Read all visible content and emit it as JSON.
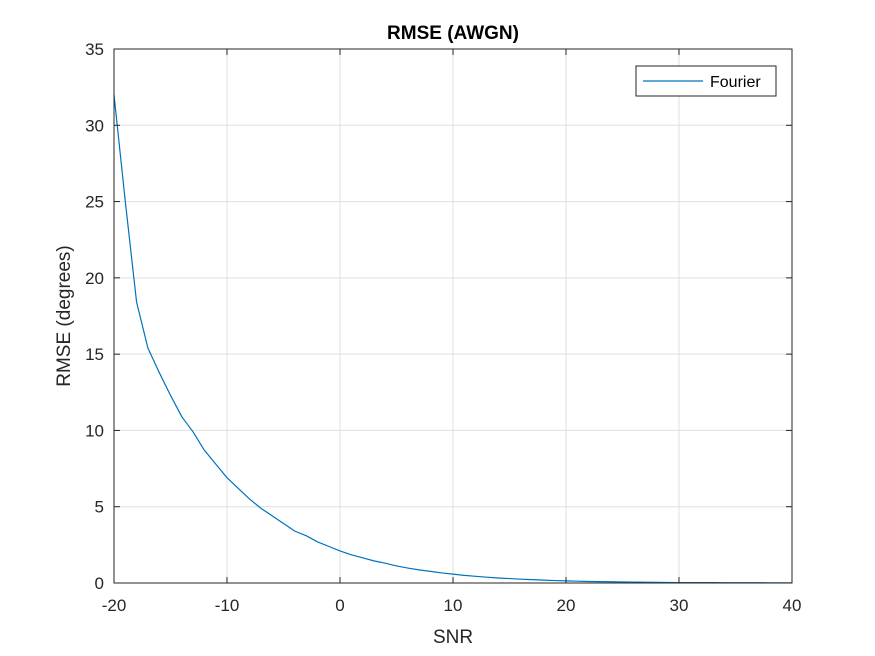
{
  "chart_data": {
    "type": "line",
    "title": "RMSE (AWGN)",
    "xlabel": "SNR",
    "ylabel": "RMSE (degrees)",
    "xlim": [
      -20,
      40
    ],
    "ylim": [
      0,
      35
    ],
    "xticks": [
      "-20",
      "-10",
      "0",
      "10",
      "20",
      "30",
      "40"
    ],
    "yticks": [
      "0",
      "5",
      "10",
      "15",
      "20",
      "25",
      "30",
      "35"
    ],
    "grid": true,
    "legend_position": "top-right",
    "series": [
      {
        "name": "Fourier",
        "color": "#0072BD",
        "x": [
          -20,
          -19,
          -18,
          -17,
          -16,
          -15,
          -14,
          -13,
          -12,
          -11,
          -10,
          -9,
          -8,
          -7,
          -6,
          -5,
          -4,
          -3,
          -2,
          -1,
          0,
          1,
          2,
          3,
          4,
          5,
          6,
          7,
          8,
          9,
          10,
          11,
          12,
          13,
          14,
          15,
          16,
          17,
          18,
          19,
          20,
          21,
          22,
          23,
          24,
          25,
          26,
          27,
          28,
          29,
          30,
          31,
          32,
          33,
          34,
          35,
          36,
          37,
          38,
          39,
          40
        ],
        "y": [
          32.0,
          25.0,
          18.4,
          15.4,
          13.8,
          12.3,
          10.9,
          9.9,
          8.7,
          7.8,
          6.9,
          6.2,
          5.5,
          4.9,
          4.4,
          3.9,
          3.4,
          3.1,
          2.7,
          2.4,
          2.1,
          1.85,
          1.65,
          1.45,
          1.3,
          1.12,
          0.98,
          0.86,
          0.76,
          0.66,
          0.58,
          0.5,
          0.44,
          0.38,
          0.33,
          0.29,
          0.25,
          0.22,
          0.19,
          0.16,
          0.14,
          0.12,
          0.1,
          0.09,
          0.08,
          0.07,
          0.06,
          0.05,
          0.04,
          0.035,
          0.03,
          0.028,
          0.025,
          0.022,
          0.02,
          0.018,
          0.016,
          0.015,
          0.014,
          0.013,
          0.012
        ]
      }
    ]
  }
}
